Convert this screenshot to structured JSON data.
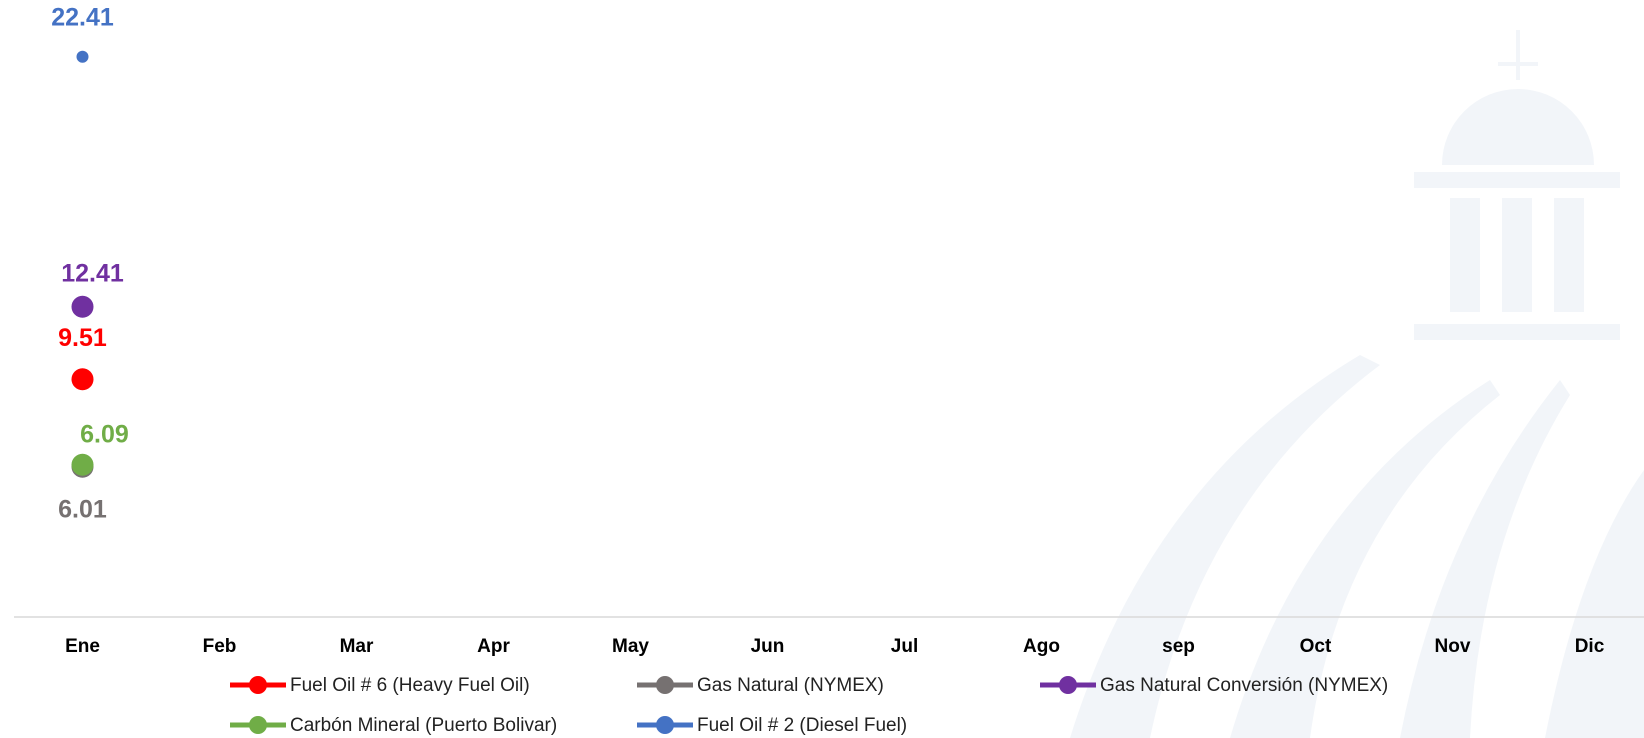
{
  "chart_data": {
    "type": "line",
    "categories": [
      "Ene",
      "Feb",
      "Mar",
      "Apr",
      "May",
      "Jun",
      "Jul",
      "Ago",
      "sep",
      "Oct",
      "Nov",
      "Dic"
    ],
    "series": [
      {
        "name": "Fuel Oil # 6 (Heavy Fuel Oil)",
        "color": "#FF0000",
        "values": [
          9.51,
          null,
          null,
          null,
          null,
          null,
          null,
          null,
          null,
          null,
          null,
          null
        ]
      },
      {
        "name": "Gas Natural (NYMEX)",
        "color": "#767171",
        "values": [
          6.01,
          null,
          null,
          null,
          null,
          null,
          null,
          null,
          null,
          null,
          null,
          null
        ]
      },
      {
        "name": "Gas Natural Conversión (NYMEX)",
        "color": "#7030A0",
        "values": [
          12.41,
          null,
          null,
          null,
          null,
          null,
          null,
          null,
          null,
          null,
          null,
          null
        ]
      },
      {
        "name": "Carbón Mineral (Puerto Bolivar)",
        "color": "#70AD47",
        "values": [
          6.09,
          null,
          null,
          null,
          null,
          null,
          null,
          null,
          null,
          null,
          null,
          null
        ]
      },
      {
        "name": "Fuel Oil # 2 (Diesel Fuel)",
        "color": "#4472C4",
        "values": [
          22.41,
          null,
          null,
          null,
          null,
          null,
          null,
          null,
          null,
          null,
          null,
          null
        ]
      }
    ],
    "ylim": [
      0,
      24
    ]
  }
}
